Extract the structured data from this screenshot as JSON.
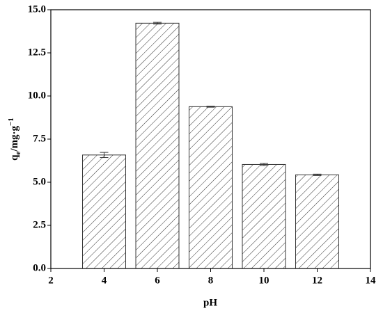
{
  "chart_data": {
    "type": "bar",
    "x_label": "pH",
    "y_label": {
      "base": "q",
      "sub": "e",
      "main": "/mg·g",
      "sup": "−1"
    },
    "x": [
      4,
      6,
      8,
      10,
      12
    ],
    "values": [
      6.58,
      14.22,
      9.38,
      6.03,
      5.43
    ],
    "errors": [
      0.15,
      0.05,
      0.03,
      0.06,
      0.04
    ],
    "color": "#333333",
    "bar_width": 1.62,
    "xlim": [
      2,
      14
    ],
    "xticks": [
      2,
      4,
      6,
      8,
      10,
      12,
      14
    ],
    "ylim": [
      0,
      15
    ],
    "yticks": [
      {
        "value": 0,
        "label": "0.0"
      },
      2.5,
      {
        "value": 5,
        "label": "5.0"
      },
      7.5,
      {
        "value": 10,
        "label": "10.0"
      },
      12.5,
      {
        "value": 15,
        "label": "15.0"
      }
    ],
    "grid": false
  }
}
